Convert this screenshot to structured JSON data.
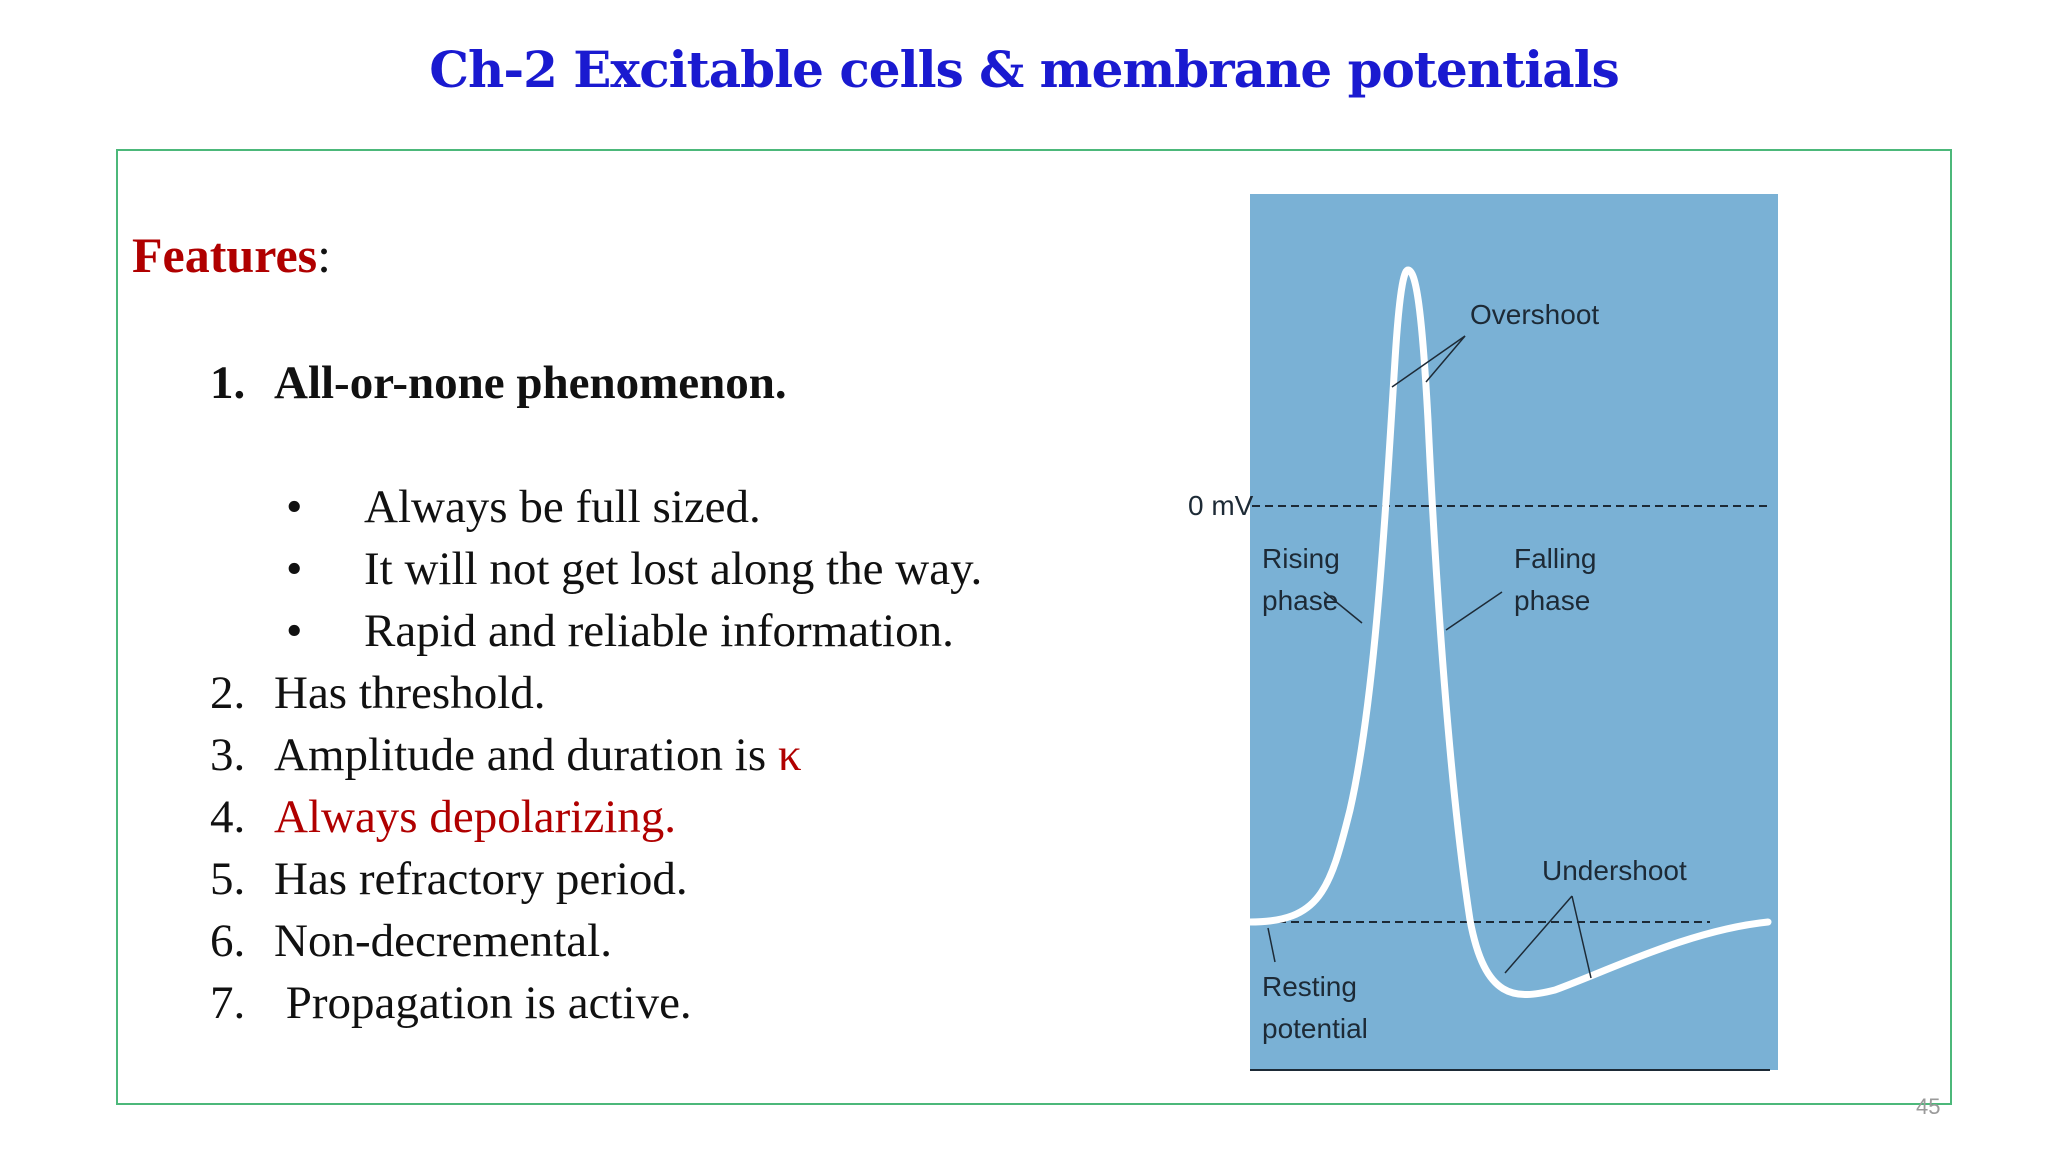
{
  "title": "Ch-2  Excitable cells & membrane potentials",
  "features": {
    "keyword": "Features",
    "colon": ":"
  },
  "points": [
    {
      "num": "1.",
      "text": "All-or-none phenomenon."
    },
    {
      "num": "2.",
      "text": "Has threshold."
    },
    {
      "num": "3.",
      "text": "Amplitude and duration is ",
      "symbol": "κ"
    },
    {
      "num": "4.",
      "text": "Always depolarizing."
    },
    {
      "num": "5.",
      "text": "Has refractory period."
    },
    {
      "num": "6.",
      "text": "Non-decremental."
    },
    {
      "num": "7.",
      "text": " Propagation is active."
    }
  ],
  "bullets": [
    {
      "mark": "•",
      "text": "Always be full sized."
    },
    {
      "mark": "•",
      "text": "It will not get lost along the way."
    },
    {
      "mark": "•",
      "text": "Rapid and reliable information."
    }
  ],
  "figure": {
    "zero_label": "0 mV",
    "overshoot": "Overshoot",
    "rising_1": "Rising",
    "rising_2": "phase",
    "falling_1": "Falling",
    "falling_2": "phase",
    "undershoot": "Undershoot",
    "resting_1": "Resting",
    "resting_2": "potential",
    "colors": {
      "panel": "#7ab1d5",
      "trace": "#ffffff"
    }
  },
  "page_number": "45"
}
